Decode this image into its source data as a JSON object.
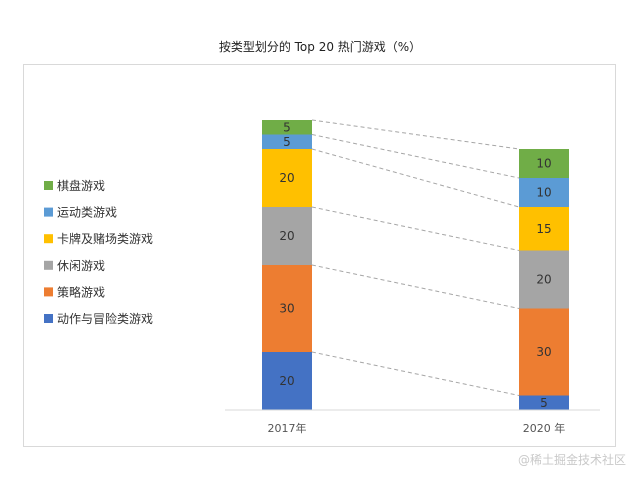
{
  "chart_data": {
    "type": "bar",
    "stacked": true,
    "title": "按类型划分的 Top 20 热门游戏（%）",
    "categories": [
      "2017年",
      "2020 年"
    ],
    "series": [
      {
        "name": "动作与冒险类游戏",
        "color": "#4472c4",
        "values": [
          20,
          5
        ]
      },
      {
        "name": "策略游戏",
        "color": "#ed7d31",
        "values": [
          30,
          30
        ]
      },
      {
        "name": "休闲游戏",
        "color": "#a5a5a5",
        "values": [
          20,
          20
        ]
      },
      {
        "name": "卡牌及赌场类游戏",
        "color": "#ffc000",
        "values": [
          20,
          15
        ]
      },
      {
        "name": "运动类游戏",
        "color": "#5b9bd5",
        "values": [
          5,
          10
        ]
      },
      {
        "name": "棋盘游戏",
        "color": "#70ad47",
        "values": [
          5,
          10
        ]
      }
    ],
    "ylim": [
      0,
      100
    ],
    "legend_position": "left",
    "connector_lines": "dashed"
  },
  "watermark": "@稀土掘金技术社区"
}
